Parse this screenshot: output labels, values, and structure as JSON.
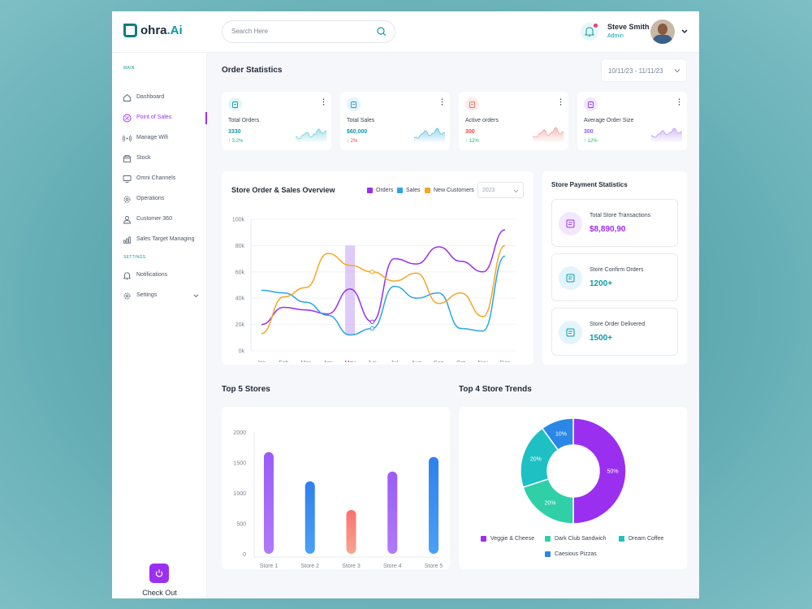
{
  "brand": {
    "name_main": "ohra",
    "name_suffix": ".Ai"
  },
  "search": {
    "placeholder": "Search Here"
  },
  "user": {
    "name": "Steve Smith",
    "role": "Admin"
  },
  "sidebar": {
    "main_label": "MAIN",
    "settings_label": "SETTINGS",
    "items": [
      {
        "label": "Dashboard",
        "icon": "home-icon"
      },
      {
        "label": "Point of Sales",
        "icon": "percent-icon",
        "active": true
      },
      {
        "label": "Manage Wifi",
        "icon": "wifi-icon"
      },
      {
        "label": "Stock",
        "icon": "box-icon"
      },
      {
        "label": "Omni Channels",
        "icon": "monitor-icon"
      },
      {
        "label": "Operations",
        "icon": "gear-icon"
      },
      {
        "label": "Customer 360",
        "icon": "user-icon"
      },
      {
        "label": "Sales Target Managing",
        "icon": "chart-icon"
      }
    ],
    "settings_items": [
      {
        "label": "Notifications",
        "icon": "bell-icon"
      },
      {
        "label": "Settings",
        "icon": "gear-icon"
      }
    ],
    "checkout_label": "Check Out"
  },
  "page": {
    "title": "Order Statistics",
    "date_range": "10/11/23 - 11/11/23"
  },
  "stats": [
    {
      "title": "Total Orders",
      "value": "3330",
      "change": "↑ 3.2%",
      "value_color": "#0e9aa7",
      "change_color": "#10b981",
      "icon_bg": "#e3f6f6",
      "icon_color": "#0e9aa7",
      "spark_color": "#7dd3d8",
      "trend": [
        0.35,
        0.2,
        0.45,
        0.6,
        0.3,
        0.5,
        0.8,
        0.55,
        0.7
      ]
    },
    {
      "title": "Total Sales",
      "value": "$60,000",
      "change": "↓ 2%",
      "value_color": "#0e9aa7",
      "change_color": "#ef4444",
      "icon_bg": "#e3f4fb",
      "icon_color": "#2b8fd6",
      "spark_color": "#6cc4ec",
      "trend": [
        0.3,
        0.25,
        0.5,
        0.7,
        0.4,
        0.55,
        0.85,
        0.5,
        0.6
      ]
    },
    {
      "title": "Active orders",
      "value": "300",
      "change": "↑ 12%",
      "value_color": "#ef4444",
      "change_color": "#10b981",
      "icon_bg": "#fdecea",
      "icon_color": "#ef6b5b",
      "spark_color": "#f7a6a6",
      "trend": [
        0.35,
        0.3,
        0.55,
        0.75,
        0.4,
        0.6,
        0.9,
        0.5,
        0.65
      ]
    },
    {
      "title": "Average Order Size",
      "value": "300",
      "change": "↑ 12%",
      "value_color": "#8b5cf6",
      "change_color": "#10b981",
      "icon_bg": "#f2e8fd",
      "icon_color": "#9b2ff0",
      "spark_color": "#c4a6f4",
      "trend": [
        0.4,
        0.3,
        0.5,
        0.7,
        0.45,
        0.6,
        0.85,
        0.55,
        0.65
      ]
    }
  ],
  "overview": {
    "title": "Store Order & Sales Overview",
    "legend": [
      "Orders",
      "Sales",
      "New Customers"
    ],
    "year": "2023"
  },
  "payment": {
    "title": "Store Payment Statistics",
    "cards": [
      {
        "label": "Total Store Transactions",
        "value": "$8,890,90",
        "color": "#9b2ff0",
        "bg": "#f2e8fd",
        "icon": "chart-icon"
      },
      {
        "label": "Store Confirm Orders",
        "value": "1200+",
        "color": "#0e9aa7",
        "bg": "#e3f4fb",
        "icon": "clipboard-icon"
      },
      {
        "label": "Store Order Delivered",
        "value": "1500+",
        "color": "#0e9aa7",
        "bg": "#e3f4fb",
        "icon": "document-icon"
      }
    ]
  },
  "sections": {
    "top_stores": "Top 5 Stores",
    "top_trends": "Top 4 Store Trends"
  },
  "chart_data": [
    {
      "type": "line",
      "title": "Store Order & Sales Overview",
      "x": [
        "Jan",
        "Feb",
        "Mar",
        "Apr",
        "May",
        "Jun",
        "Jul",
        "Aug",
        "Sep",
        "Oct",
        "Nov",
        "Dec"
      ],
      "ylim": [
        0,
        100000
      ],
      "yticks": [
        "0k",
        "20k",
        "40k",
        "60k",
        "80k",
        "100k"
      ],
      "highlight": "May",
      "series": [
        {
          "name": "Orders",
          "color": "#9b2ff0",
          "values": [
            20000,
            33000,
            31000,
            28000,
            47000,
            22000,
            70000,
            66000,
            79000,
            68000,
            60000,
            92000
          ]
        },
        {
          "name": "Sales",
          "color": "#2ba5e6",
          "values": [
            46000,
            44000,
            37000,
            27000,
            12000,
            17000,
            49000,
            40000,
            44000,
            17000,
            15000,
            72000
          ]
        },
        {
          "name": "New Customers",
          "color": "#f5a623",
          "values": [
            13000,
            41000,
            48000,
            74000,
            65000,
            60000,
            53000,
            59000,
            36000,
            44000,
            26000,
            80000
          ]
        }
      ]
    },
    {
      "type": "bar",
      "title": "Top 5 Stores",
      "categories": [
        "Store 1",
        "Store 2",
        "Store 3",
        "Store 4",
        "Store 5"
      ],
      "values": [
        1670,
        1190,
        720,
        1350,
        1590
      ],
      "ylim": [
        0,
        2000
      ],
      "yticks": [
        "0",
        "500",
        "1000",
        "1500",
        "2000"
      ],
      "colors": [
        [
          "#9b5cf6",
          "#b07af8"
        ],
        [
          "#2f80ed",
          "#4aa0f5"
        ],
        [
          "#f87171",
          "#f8a590"
        ],
        [
          "#9b5cf6",
          "#b07af8"
        ],
        [
          "#2f80ed",
          "#4aa0f5"
        ]
      ]
    },
    {
      "type": "pie",
      "title": "Top 4 Store Trends",
      "slices": [
        {
          "name": "Veggie & Cheese",
          "value": 50,
          "label": "50%",
          "color": "#9b2ff0"
        },
        {
          "name": "Dark Club Sandwich",
          "value": 20,
          "label": "20%",
          "color": "#2fcfa8"
        },
        {
          "name": "Dream Coffee",
          "value": 20,
          "label": "20%",
          "color": "#1ec0c4"
        },
        {
          "name": "Caesious Pizzas",
          "value": 10,
          "label": "10%",
          "color": "#2a87e8"
        }
      ]
    }
  ]
}
